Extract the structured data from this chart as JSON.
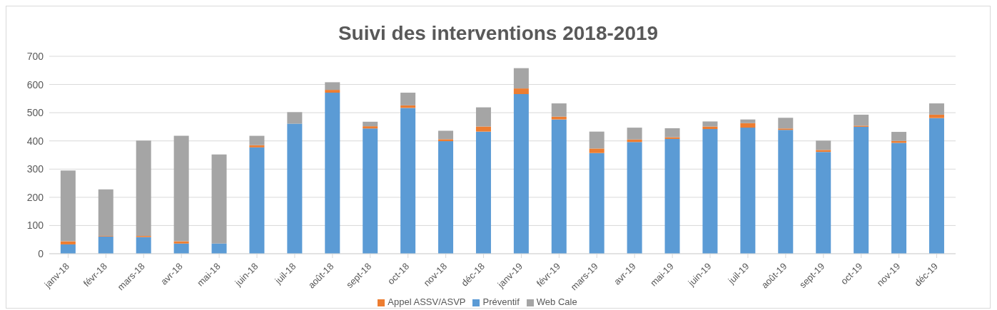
{
  "chart_data": {
    "type": "bar",
    "title": "Suivi des interventions 2018-2019",
    "stacked": true,
    "categories": [
      "janv-18",
      "févr-18",
      "mars-18",
      "avr-18",
      "mai-18",
      "juin-18",
      "juil-18",
      "août-18",
      "sept-18",
      "oct-18",
      "nov-18",
      "déc-18",
      "janv-19",
      "févr-19",
      "mars-19",
      "avr-19",
      "mai-19",
      "juin-19",
      "juil-19",
      "août-19",
      "sept-19",
      "oct-19",
      "nov-19",
      "déc-19"
    ],
    "series": [
      {
        "name": "Préventif",
        "color": "#5b9bd5",
        "values": [
          33,
          61,
          59,
          36,
          36,
          377,
          461,
          571,
          444,
          517,
          399,
          433,
          566,
          476,
          357,
          396,
          407,
          442,
          447,
          439,
          361,
          450,
          393,
          481
        ]
      },
      {
        "name": "Appel ASSV/ASVP",
        "color": "#ed7d31",
        "values": [
          11,
          2,
          4,
          8,
          0,
          8,
          null,
          10,
          8,
          9,
          7,
          18,
          20,
          10,
          16,
          9,
          6,
          9,
          16,
          5,
          7,
          4,
          7,
          12
        ]
      },
      {
        "name": "Web Cale",
        "color": "#a5a5a5",
        "values": [
          251,
          165,
          338,
          374,
          316,
          33,
          41,
          27,
          16,
          45,
          30,
          68,
          72,
          47,
          60,
          42,
          32,
          18,
          13,
          38,
          33,
          39,
          32,
          40
        ]
      }
    ],
    "ylim": [
      0,
      700
    ],
    "yticks": [
      0,
      100,
      200,
      300,
      400,
      500,
      600,
      700
    ],
    "grid": "y",
    "legend": "bottom"
  }
}
